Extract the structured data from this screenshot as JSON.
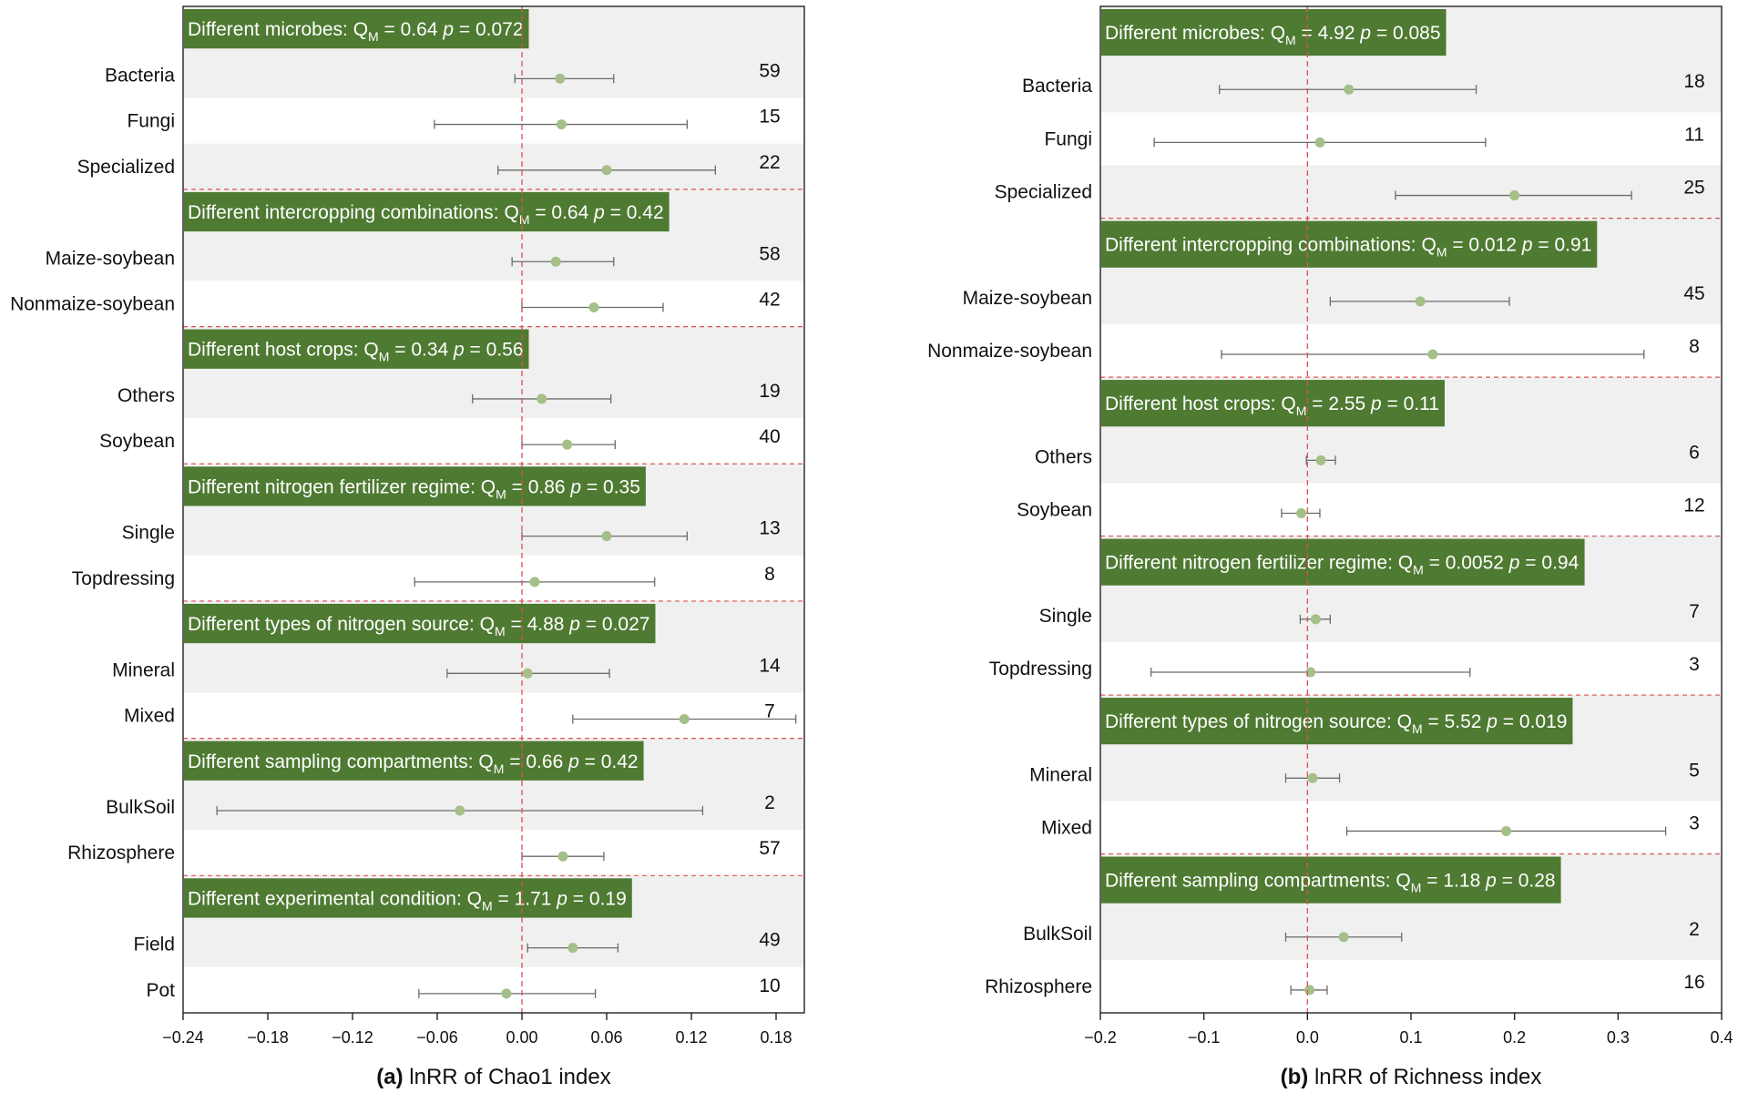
{
  "chart_data": [
    {
      "type": "forest",
      "panel_label": "(a)",
      "xlabel": "lnRR of Chao1 index",
      "xlim": [
        -0.24,
        0.2
      ],
      "xticks": [
        -0.24,
        -0.18,
        -0.12,
        -0.06,
        0.0,
        0.06,
        0.12,
        0.18
      ],
      "xtick_labels": [
        "−0.24",
        "−0.18",
        "−0.12",
        "−0.06",
        "0.00",
        "0.06",
        "0.12",
        "0.18"
      ],
      "reference_line": 0,
      "groups": [
        {
          "title": "Different microbes: ",
          "qm": "0.64",
          "p": "0.072",
          "rows": [
            {
              "label": "Bacteria",
              "mean": 0.027,
              "lo": -0.005,
              "hi": 0.065,
              "n": "59"
            },
            {
              "label": "Fungi",
              "mean": 0.028,
              "lo": -0.062,
              "hi": 0.117,
              "n": "15"
            },
            {
              "label": "Specialized",
              "mean": 0.06,
              "lo": -0.017,
              "hi": 0.137,
              "n": "22"
            }
          ]
        },
        {
          "title": "Different intercropping combinations: ",
          "qm": "0.64",
          "p": "0.42",
          "rows": [
            {
              "label": "Maize-soybean",
              "mean": 0.024,
              "lo": -0.007,
              "hi": 0.065,
              "n": "58"
            },
            {
              "label": "Nonmaize-soybean",
              "mean": 0.051,
              "lo": 0.0,
              "hi": 0.1,
              "n": "42"
            }
          ]
        },
        {
          "title": "Different host crops: ",
          "qm": "0.34",
          "p": "0.56",
          "rows": [
            {
              "label": "Others",
              "mean": 0.014,
              "lo": -0.035,
              "hi": 0.063,
              "n": "19"
            },
            {
              "label": "Soybean",
              "mean": 0.032,
              "lo": 0.0,
              "hi": 0.066,
              "n": "40"
            }
          ]
        },
        {
          "title": "Different nitrogen fertilizer regime: ",
          "qm": "0.86",
          "p": "0.35",
          "rows": [
            {
              "label": "Single",
              "mean": 0.06,
              "lo": 0.0,
              "hi": 0.117,
              "n": "13"
            },
            {
              "label": "Topdressing",
              "mean": 0.009,
              "lo": -0.076,
              "hi": 0.094,
              "n": "8"
            }
          ]
        },
        {
          "title": "Different types of nitrogen source: ",
          "qm": "4.88",
          "p": "0.027",
          "rows": [
            {
              "label": "Mineral",
              "mean": 0.004,
              "lo": -0.053,
              "hi": 0.062,
              "n": "14"
            },
            {
              "label": "Mixed",
              "mean": 0.115,
              "lo": 0.036,
              "hi": 0.194,
              "n": "7"
            }
          ]
        },
        {
          "title": "Different sampling compartments: ",
          "qm": "0.66",
          "p": "0.42",
          "rows": [
            {
              "label": "BulkSoil",
              "mean": -0.044,
              "lo": -0.216,
              "hi": 0.128,
              "n": "2"
            },
            {
              "label": "Rhizosphere",
              "mean": 0.029,
              "lo": 0.0,
              "hi": 0.058,
              "n": "57"
            }
          ]
        },
        {
          "title": "Different experimental condition: ",
          "qm": "1.71",
          "p": "0.19",
          "rows": [
            {
              "label": "Field",
              "mean": 0.036,
              "lo": 0.004,
              "hi": 0.068,
              "n": "49"
            },
            {
              "label": "Pot",
              "mean": -0.011,
              "lo": -0.073,
              "hi": 0.052,
              "n": "10"
            }
          ]
        }
      ]
    },
    {
      "type": "forest",
      "panel_label": "(b)",
      "xlabel": "lnRR of Richness index",
      "xlim": [
        -0.2,
        0.4
      ],
      "xticks": [
        -0.2,
        -0.1,
        0.0,
        0.1,
        0.2,
        0.3,
        0.4
      ],
      "xtick_labels": [
        "−0.2",
        "−0.1",
        "0.0",
        "0.1",
        "0.2",
        "0.3",
        "0.4"
      ],
      "reference_line": 0,
      "groups": [
        {
          "title": "Different microbes: ",
          "qm": "4.92",
          "p": "0.085",
          "rows": [
            {
              "label": "Bacteria",
              "mean": 0.04,
              "lo": -0.085,
              "hi": 0.163,
              "n": "18"
            },
            {
              "label": "Fungi",
              "mean": 0.012,
              "lo": -0.148,
              "hi": 0.172,
              "n": "11"
            },
            {
              "label": "Specialized",
              "mean": 0.2,
              "lo": 0.085,
              "hi": 0.313,
              "n": "25"
            }
          ]
        },
        {
          "title": "Different intercropping combinations: ",
          "qm": "0.012",
          "p": "0.91",
          "rows": [
            {
              "label": "Maize-soybean",
              "mean": 0.109,
              "lo": 0.022,
              "hi": 0.195,
              "n": "45"
            },
            {
              "label": "Nonmaize-soybean",
              "mean": 0.121,
              "lo": -0.083,
              "hi": 0.325,
              "n": "8"
            }
          ]
        },
        {
          "title": "Different host crops: ",
          "qm": "2.55",
          "p": "0.11",
          "rows": [
            {
              "label": "Others",
              "mean": 0.013,
              "lo": -0.001,
              "hi": 0.027,
              "n": "6"
            },
            {
              "label": "Soybean",
              "mean": -0.006,
              "lo": -0.025,
              "hi": 0.012,
              "n": "12"
            }
          ]
        },
        {
          "title": "Different nitrogen fertilizer regime: ",
          "qm": "0.0052",
          "p": "0.94",
          "rows": [
            {
              "label": "Single",
              "mean": 0.008,
              "lo": -0.007,
              "hi": 0.022,
              "n": "7"
            },
            {
              "label": "Topdressing",
              "mean": 0.003,
              "lo": -0.151,
              "hi": 0.157,
              "n": "3"
            }
          ]
        },
        {
          "title": "Different types of nitrogen source: ",
          "qm": "5.52",
          "p": "0.019",
          "rows": [
            {
              "label": "Mineral",
              "mean": 0.005,
              "lo": -0.021,
              "hi": 0.031,
              "n": "5"
            },
            {
              "label": "Mixed",
              "mean": 0.192,
              "lo": 0.038,
              "hi": 0.346,
              "n": "3"
            }
          ]
        },
        {
          "title": "Different sampling compartments: ",
          "qm": "1.18",
          "p": "0.28",
          "rows": [
            {
              "label": "BulkSoil",
              "mean": 0.035,
              "lo": -0.021,
              "hi": 0.091,
              "n": "2"
            },
            {
              "label": "Rhizosphere",
              "mean": 0.002,
              "lo": -0.016,
              "hi": 0.019,
              "n": "16"
            }
          ]
        }
      ]
    }
  ],
  "colors": {
    "header_bg": "#4e7a32",
    "header_text": "#ffffff",
    "stripe": "#f0f0f0",
    "point": "#a4bf88",
    "whisker": "#6b6b6b",
    "ref_line": "#d9534f"
  }
}
